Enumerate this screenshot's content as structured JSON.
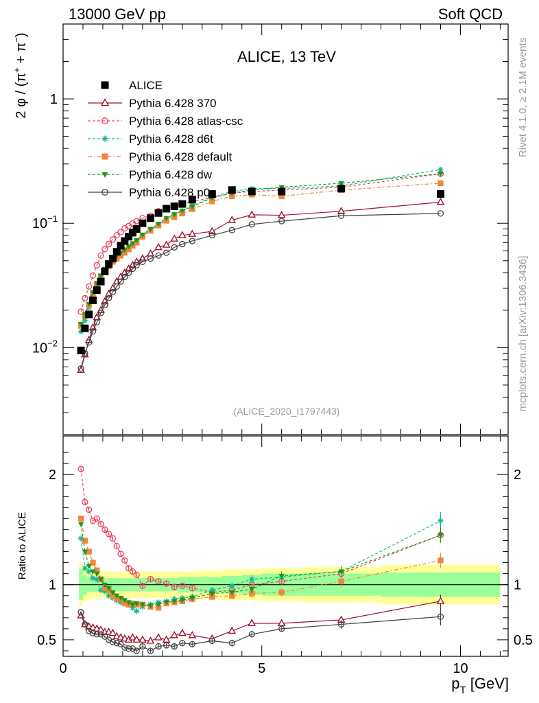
{
  "header": {
    "energy_label": "13000 GeV pp",
    "process_label": "Soft QCD",
    "plot_title": "ALICE, 13 TeV",
    "analysis_id": "(ALICE_2020_I1797443)",
    "side_label_top": "Rivet 4.1.0, ≥ 2.1M events",
    "side_label_bottom": "mcplots.cern.ch [arXiv:1306.3436]"
  },
  "chart_data": {
    "type": "scatter",
    "title": "ALICE, 13 TeV",
    "xlabel": "p_T [GeV]",
    "ylabel_main": "2 φ / (π⁺ + π⁻)",
    "ylabel_ratio": "Ratio to ALICE",
    "xlim": [
      0,
      11.2
    ],
    "ylim_main": [
      0.002,
      4
    ],
    "yscale_main": "log",
    "ylim_ratio": [
      0.35,
      2.35
    ],
    "x_ticks": [
      "0",
      "5",
      "10"
    ],
    "y_ticks_main": [
      "10⁻²",
      "10⁻¹",
      "1"
    ],
    "y_ticks_ratio": [
      "0.5",
      "1",
      "2"
    ],
    "x": [
      0.45,
      0.55,
      0.65,
      0.75,
      0.85,
      0.95,
      1.05,
      1.15,
      1.25,
      1.35,
      1.45,
      1.55,
      1.65,
      1.75,
      1.85,
      2.0,
      2.2,
      2.4,
      2.6,
      2.8,
      3.0,
      3.25,
      3.75,
      4.25,
      4.75,
      5.5,
      7.0,
      9.5
    ],
    "alice_band": {
      "x_edges": [
        0.4,
        0.5,
        0.6,
        0.7,
        0.8,
        0.9,
        1.0,
        1.1,
        1.2,
        1.3,
        1.4,
        1.5,
        1.6,
        1.7,
        1.8,
        1.9,
        2.1,
        2.3,
        2.5,
        2.7,
        2.9,
        3.1,
        3.4,
        4.0,
        4.5,
        5.0,
        6.0,
        8.0,
        11.0
      ],
      "stat_rel": [
        0.14,
        0.09,
        0.07,
        0.065,
        0.06,
        0.06,
        0.06,
        0.06,
        0.06,
        0.06,
        0.06,
        0.06,
        0.06,
        0.06,
        0.06,
        0.06,
        0.06,
        0.06,
        0.06,
        0.06,
        0.07,
        0.07,
        0.07,
        0.08,
        0.09,
        0.1,
        0.1,
        0.11
      ],
      "total_rel": [
        0.19,
        0.15,
        0.14,
        0.13,
        0.12,
        0.12,
        0.12,
        0.12,
        0.12,
        0.12,
        0.12,
        0.12,
        0.12,
        0.12,
        0.12,
        0.12,
        0.12,
        0.12,
        0.12,
        0.12,
        0.12,
        0.12,
        0.13,
        0.14,
        0.14,
        0.15,
        0.16,
        0.18
      ]
    },
    "series": [
      {
        "name": "ALICE",
        "color": "#000000",
        "marker": "square",
        "dash": "",
        "values": [
          0.0095,
          0.0143,
          0.0185,
          0.024,
          0.029,
          0.034,
          0.041,
          0.047,
          0.052,
          0.059,
          0.066,
          0.072,
          0.078,
          0.084,
          0.09,
          0.1,
          0.11,
          0.121,
          0.131,
          0.137,
          0.143,
          0.155,
          0.172,
          0.185,
          0.18,
          0.18,
          0.19,
          0.172
        ],
        "ratio": [
          1,
          1,
          1,
          1,
          1,
          1,
          1,
          1,
          1,
          1,
          1,
          1,
          1,
          1,
          1,
          1,
          1,
          1,
          1,
          1,
          1,
          1,
          1,
          1,
          1,
          1,
          1,
          1
        ]
      },
      {
        "name": "Pythia 6.428 370",
        "color": "#a0102a",
        "marker": "triangle",
        "dash": "",
        "values": [
          0.0066,
          0.0088,
          0.0115,
          0.0145,
          0.0175,
          0.02,
          0.0235,
          0.027,
          0.03,
          0.034,
          0.037,
          0.04,
          0.043,
          0.046,
          0.049,
          0.052,
          0.057,
          0.064,
          0.067,
          0.075,
          0.08,
          0.082,
          0.086,
          0.106,
          0.117,
          0.116,
          0.125,
          0.148
        ],
        "ratio": [
          0.72,
          0.64,
          0.62,
          0.61,
          0.6,
          0.59,
          0.57,
          0.57,
          0.56,
          0.53,
          0.52,
          0.51,
          0.5,
          0.52,
          0.5,
          0.5,
          0.49,
          0.52,
          0.5,
          0.54,
          0.56,
          0.54,
          0.51,
          0.58,
          0.65,
          0.65,
          0.68,
          0.85
        ],
        "ratio_err": [
          0.01,
          0.01,
          0.01,
          0.01,
          0.01,
          0.01,
          0.01,
          0.01,
          0.01,
          0.01,
          0.01,
          0.01,
          0.01,
          0.01,
          0.01,
          0.01,
          0.01,
          0.01,
          0.01,
          0.01,
          0.02,
          0.02,
          0.02,
          0.02,
          0.03,
          0.03,
          0.03,
          0.06
        ]
      },
      {
        "name": "Pythia 6.428 atlas-csc",
        "color": "#e8405c",
        "marker": "circle-open",
        "dash": "4,3",
        "values": [
          0.0195,
          0.025,
          0.031,
          0.038,
          0.046,
          0.055,
          0.062,
          0.068,
          0.074,
          0.08,
          0.085,
          0.091,
          0.095,
          0.1,
          0.104,
          0.11,
          0.115,
          0.125,
          0.13,
          0.136,
          0.143,
          0.15,
          0.16,
          0.175,
          0.18,
          0.185,
          0.195,
          0.25
        ],
        "ratio": [
          2.05,
          1.75,
          1.68,
          1.58,
          1.6,
          1.55,
          1.5,
          1.46,
          1.42,
          1.35,
          1.28,
          1.22,
          1.15,
          1.12,
          1.09,
          0.99,
          1.05,
          1.03,
          1.01,
          0.98,
          0.99,
          0.97,
          0.93,
          0.95,
          1.0,
          1.03,
          1.1,
          1.45
        ],
        "ratio_err": [
          0.02,
          0.02,
          0.02,
          0.02,
          0.02,
          0.02,
          0.02,
          0.02,
          0.02,
          0.02,
          0.02,
          0.02,
          0.02,
          0.02,
          0.02,
          0.02,
          0.02,
          0.02,
          0.02,
          0.03,
          0.03,
          0.03,
          0.03,
          0.03,
          0.03,
          0.04,
          0.04,
          0.06
        ]
      },
      {
        "name": "Pythia 6.428 d6t",
        "color": "#10b896",
        "marker": "star",
        "dash": "4,3",
        "values": [
          0.0135,
          0.0165,
          0.021,
          0.026,
          0.031,
          0.036,
          0.041,
          0.046,
          0.051,
          0.055,
          0.058,
          0.061,
          0.064,
          0.068,
          0.072,
          0.08,
          0.089,
          0.097,
          0.108,
          0.118,
          0.126,
          0.138,
          0.162,
          0.18,
          0.19,
          0.19,
          0.2,
          0.27
        ],
        "ratio": [
          1.42,
          1.15,
          1.12,
          1.06,
          1.05,
          0.95,
          0.94,
          0.9,
          0.88,
          0.86,
          0.84,
          0.85,
          0.82,
          0.79,
          0.76,
          0.8,
          0.82,
          0.84,
          0.85,
          0.87,
          0.88,
          0.89,
          0.95,
          0.99,
          1.05,
          1.07,
          1.12,
          1.58
        ],
        "ratio_err": [
          0.03,
          0.02,
          0.02,
          0.02,
          0.02,
          0.02,
          0.02,
          0.02,
          0.02,
          0.02,
          0.02,
          0.02,
          0.02,
          0.02,
          0.02,
          0.02,
          0.02,
          0.02,
          0.02,
          0.03,
          0.03,
          0.03,
          0.03,
          0.03,
          0.04,
          0.04,
          0.05,
          0.08
        ]
      },
      {
        "name": "Pythia 6.428 default",
        "color": "#f4843c",
        "marker": "square",
        "dash": "6,3,2,3",
        "values": [
          0.015,
          0.018,
          0.022,
          0.027,
          0.032,
          0.037,
          0.041,
          0.045,
          0.049,
          0.052,
          0.055,
          0.058,
          0.062,
          0.066,
          0.07,
          0.078,
          0.087,
          0.096,
          0.105,
          0.112,
          0.12,
          0.13,
          0.15,
          0.165,
          0.17,
          0.165,
          0.185,
          0.21
        ],
        "ratio": [
          1.6,
          1.4,
          1.3,
          1.2,
          1.13,
          1.05,
          0.97,
          0.95,
          0.9,
          0.87,
          0.87,
          0.83,
          0.82,
          0.83,
          0.82,
          0.82,
          0.8,
          0.79,
          0.83,
          0.84,
          0.85,
          0.87,
          0.89,
          0.9,
          0.92,
          0.93,
          1.03,
          1.22
        ],
        "ratio_err": [
          0.02,
          0.02,
          0.02,
          0.02,
          0.02,
          0.02,
          0.02,
          0.02,
          0.02,
          0.02,
          0.02,
          0.02,
          0.02,
          0.02,
          0.02,
          0.02,
          0.02,
          0.02,
          0.02,
          0.02,
          0.03,
          0.03,
          0.03,
          0.03,
          0.04,
          0.04,
          0.05,
          0.07
        ]
      },
      {
        "name": "Pythia 6.428 dw",
        "color": "#1a9a1a",
        "marker": "triangle-down",
        "dash": "4,3",
        "values": [
          0.0155,
          0.0185,
          0.0225,
          0.028,
          0.033,
          0.038,
          0.043,
          0.047,
          0.051,
          0.055,
          0.058,
          0.061,
          0.065,
          0.069,
          0.073,
          0.081,
          0.09,
          0.099,
          0.11,
          0.118,
          0.126,
          0.136,
          0.16,
          0.175,
          0.185,
          0.195,
          0.21,
          0.25
        ],
        "ratio": [
          1.55,
          1.3,
          1.17,
          1.12,
          1.1,
          1.05,
          1.0,
          0.97,
          0.93,
          0.9,
          0.88,
          0.86,
          0.84,
          0.82,
          0.83,
          0.82,
          0.81,
          0.82,
          0.84,
          0.85,
          0.86,
          0.88,
          0.92,
          0.93,
          0.96,
          1.08,
          1.12,
          1.45
        ],
        "ratio_err": [
          0.02,
          0.02,
          0.02,
          0.02,
          0.02,
          0.02,
          0.02,
          0.02,
          0.02,
          0.02,
          0.02,
          0.02,
          0.02,
          0.02,
          0.02,
          0.02,
          0.02,
          0.02,
          0.02,
          0.02,
          0.03,
          0.03,
          0.03,
          0.03,
          0.04,
          0.04,
          0.05,
          0.07
        ]
      },
      {
        "name": "Pythia 6.428 p0",
        "color": "#404040",
        "marker": "circle-open",
        "dash": "",
        "values": [
          0.0068,
          0.009,
          0.011,
          0.0135,
          0.016,
          0.019,
          0.022,
          0.025,
          0.028,
          0.031,
          0.034,
          0.037,
          0.04,
          0.043,
          0.046,
          0.049,
          0.052,
          0.055,
          0.058,
          0.064,
          0.068,
          0.072,
          0.08,
          0.088,
          0.098,
          0.104,
          0.115,
          0.12
        ],
        "ratio": [
          0.75,
          0.64,
          0.58,
          0.56,
          0.55,
          0.55,
          0.53,
          0.5,
          0.48,
          0.47,
          0.46,
          0.43,
          0.42,
          0.42,
          0.4,
          0.44,
          0.4,
          0.44,
          0.45,
          0.44,
          0.47,
          0.46,
          0.49,
          0.47,
          0.55,
          0.6,
          0.64,
          0.71
        ],
        "ratio_err": [
          0.01,
          0.01,
          0.01,
          0.01,
          0.01,
          0.01,
          0.01,
          0.01,
          0.01,
          0.01,
          0.01,
          0.01,
          0.01,
          0.01,
          0.02,
          0.02,
          0.02,
          0.02,
          0.02,
          0.02,
          0.02,
          0.02,
          0.02,
          0.03,
          0.03,
          0.03,
          0.04,
          0.08
        ]
      }
    ]
  }
}
